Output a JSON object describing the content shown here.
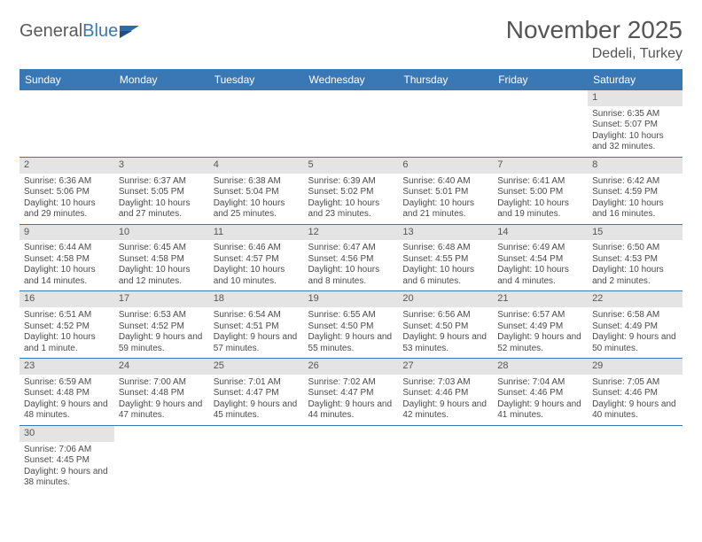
{
  "brand": {
    "word1": "General",
    "word2": "Blue"
  },
  "colors": {
    "header_bg": "#3a78b5",
    "header_text": "#ffffff",
    "daynum_bg": "#e4e4e4",
    "cell_border": "#3a78b5",
    "body_text": "#4a4a4a"
  },
  "title": "November 2025",
  "location": "Dedeli, Turkey",
  "day_headers": [
    "Sunday",
    "Monday",
    "Tuesday",
    "Wednesday",
    "Thursday",
    "Friday",
    "Saturday"
  ],
  "weeks": [
    [
      {
        "empty": true
      },
      {
        "empty": true
      },
      {
        "empty": true
      },
      {
        "empty": true
      },
      {
        "empty": true
      },
      {
        "empty": true
      },
      {
        "n": "1",
        "sunrise": "Sunrise: 6:35 AM",
        "sunset": "Sunset: 5:07 PM",
        "day": "Daylight: 10 hours and 32 minutes."
      }
    ],
    [
      {
        "n": "2",
        "sunrise": "Sunrise: 6:36 AM",
        "sunset": "Sunset: 5:06 PM",
        "day": "Daylight: 10 hours and 29 minutes."
      },
      {
        "n": "3",
        "sunrise": "Sunrise: 6:37 AM",
        "sunset": "Sunset: 5:05 PM",
        "day": "Daylight: 10 hours and 27 minutes."
      },
      {
        "n": "4",
        "sunrise": "Sunrise: 6:38 AM",
        "sunset": "Sunset: 5:04 PM",
        "day": "Daylight: 10 hours and 25 minutes."
      },
      {
        "n": "5",
        "sunrise": "Sunrise: 6:39 AM",
        "sunset": "Sunset: 5:02 PM",
        "day": "Daylight: 10 hours and 23 minutes."
      },
      {
        "n": "6",
        "sunrise": "Sunrise: 6:40 AM",
        "sunset": "Sunset: 5:01 PM",
        "day": "Daylight: 10 hours and 21 minutes."
      },
      {
        "n": "7",
        "sunrise": "Sunrise: 6:41 AM",
        "sunset": "Sunset: 5:00 PM",
        "day": "Daylight: 10 hours and 19 minutes."
      },
      {
        "n": "8",
        "sunrise": "Sunrise: 6:42 AM",
        "sunset": "Sunset: 4:59 PM",
        "day": "Daylight: 10 hours and 16 minutes."
      }
    ],
    [
      {
        "n": "9",
        "sunrise": "Sunrise: 6:44 AM",
        "sunset": "Sunset: 4:58 PM",
        "day": "Daylight: 10 hours and 14 minutes."
      },
      {
        "n": "10",
        "sunrise": "Sunrise: 6:45 AM",
        "sunset": "Sunset: 4:58 PM",
        "day": "Daylight: 10 hours and 12 minutes."
      },
      {
        "n": "11",
        "sunrise": "Sunrise: 6:46 AM",
        "sunset": "Sunset: 4:57 PM",
        "day": "Daylight: 10 hours and 10 minutes."
      },
      {
        "n": "12",
        "sunrise": "Sunrise: 6:47 AM",
        "sunset": "Sunset: 4:56 PM",
        "day": "Daylight: 10 hours and 8 minutes."
      },
      {
        "n": "13",
        "sunrise": "Sunrise: 6:48 AM",
        "sunset": "Sunset: 4:55 PM",
        "day": "Daylight: 10 hours and 6 minutes."
      },
      {
        "n": "14",
        "sunrise": "Sunrise: 6:49 AM",
        "sunset": "Sunset: 4:54 PM",
        "day": "Daylight: 10 hours and 4 minutes."
      },
      {
        "n": "15",
        "sunrise": "Sunrise: 6:50 AM",
        "sunset": "Sunset: 4:53 PM",
        "day": "Daylight: 10 hours and 2 minutes."
      }
    ],
    [
      {
        "n": "16",
        "sunrise": "Sunrise: 6:51 AM",
        "sunset": "Sunset: 4:52 PM",
        "day": "Daylight: 10 hours and 1 minute."
      },
      {
        "n": "17",
        "sunrise": "Sunrise: 6:53 AM",
        "sunset": "Sunset: 4:52 PM",
        "day": "Daylight: 9 hours and 59 minutes."
      },
      {
        "n": "18",
        "sunrise": "Sunrise: 6:54 AM",
        "sunset": "Sunset: 4:51 PM",
        "day": "Daylight: 9 hours and 57 minutes."
      },
      {
        "n": "19",
        "sunrise": "Sunrise: 6:55 AM",
        "sunset": "Sunset: 4:50 PM",
        "day": "Daylight: 9 hours and 55 minutes."
      },
      {
        "n": "20",
        "sunrise": "Sunrise: 6:56 AM",
        "sunset": "Sunset: 4:50 PM",
        "day": "Daylight: 9 hours and 53 minutes."
      },
      {
        "n": "21",
        "sunrise": "Sunrise: 6:57 AM",
        "sunset": "Sunset: 4:49 PM",
        "day": "Daylight: 9 hours and 52 minutes."
      },
      {
        "n": "22",
        "sunrise": "Sunrise: 6:58 AM",
        "sunset": "Sunset: 4:49 PM",
        "day": "Daylight: 9 hours and 50 minutes."
      }
    ],
    [
      {
        "n": "23",
        "sunrise": "Sunrise: 6:59 AM",
        "sunset": "Sunset: 4:48 PM",
        "day": "Daylight: 9 hours and 48 minutes."
      },
      {
        "n": "24",
        "sunrise": "Sunrise: 7:00 AM",
        "sunset": "Sunset: 4:48 PM",
        "day": "Daylight: 9 hours and 47 minutes."
      },
      {
        "n": "25",
        "sunrise": "Sunrise: 7:01 AM",
        "sunset": "Sunset: 4:47 PM",
        "day": "Daylight: 9 hours and 45 minutes."
      },
      {
        "n": "26",
        "sunrise": "Sunrise: 7:02 AM",
        "sunset": "Sunset: 4:47 PM",
        "day": "Daylight: 9 hours and 44 minutes."
      },
      {
        "n": "27",
        "sunrise": "Sunrise: 7:03 AM",
        "sunset": "Sunset: 4:46 PM",
        "day": "Daylight: 9 hours and 42 minutes."
      },
      {
        "n": "28",
        "sunrise": "Sunrise: 7:04 AM",
        "sunset": "Sunset: 4:46 PM",
        "day": "Daylight: 9 hours and 41 minutes."
      },
      {
        "n": "29",
        "sunrise": "Sunrise: 7:05 AM",
        "sunset": "Sunset: 4:46 PM",
        "day": "Daylight: 9 hours and 40 minutes."
      }
    ],
    [
      {
        "n": "30",
        "sunrise": "Sunrise: 7:06 AM",
        "sunset": "Sunset: 4:45 PM",
        "day": "Daylight: 9 hours and 38 minutes."
      },
      {
        "empty": true
      },
      {
        "empty": true
      },
      {
        "empty": true
      },
      {
        "empty": true
      },
      {
        "empty": true
      },
      {
        "empty": true
      }
    ]
  ]
}
